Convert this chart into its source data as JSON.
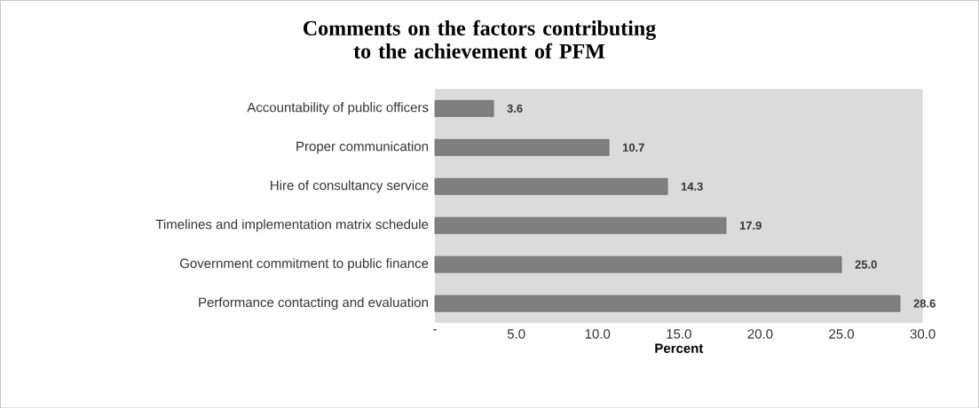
{
  "chart_data": {
    "type": "bar",
    "orientation": "horizontal",
    "title": "Comments on the factors contributing to the achievement of PFM",
    "xlabel": "Percent",
    "categories": [
      "Accountability of public officers",
      "Proper communication",
      "Hire of consultancy service",
      "Timelines and implementation matrix schedule",
      "Government commitment to public finance",
      "Performance contacting and evaluation"
    ],
    "values": [
      3.6,
      10.7,
      14.3,
      17.9,
      25.0,
      28.6
    ],
    "value_labels": [
      "3.6",
      "10.7",
      "14.3",
      "17.9",
      "25.0",
      "28.6"
    ],
    "color": "#7f7f7f",
    "xlim": [
      0,
      30
    ],
    "xticks": [
      {
        "value": 0,
        "label": "-"
      },
      {
        "value": 5,
        "label": "5.0"
      },
      {
        "value": 10,
        "label": "10.0"
      },
      {
        "value": 15,
        "label": "15.0"
      },
      {
        "value": 20,
        "label": "20.0"
      },
      {
        "value": 25,
        "label": "25.0"
      },
      {
        "value": 30,
        "label": "30.0"
      }
    ],
    "grid": false
  }
}
